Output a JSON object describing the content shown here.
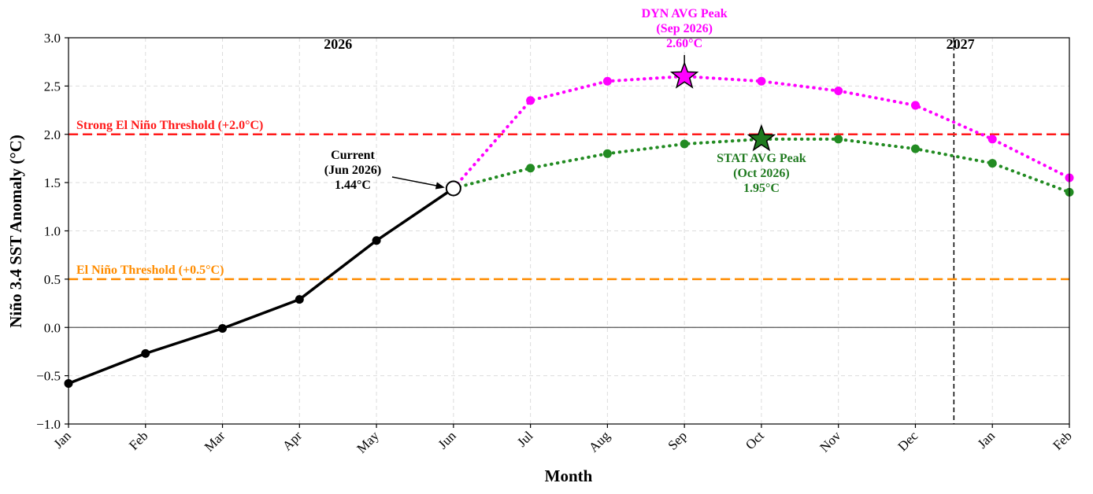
{
  "chart_data": {
    "type": "line",
    "xlabel": "Month",
    "ylabel": "Niño 3.4 SST Anomaly (°C)",
    "ylim": [
      -1.0,
      3.0
    ],
    "yticks": [
      -1.0,
      -0.5,
      0.0,
      0.5,
      1.0,
      1.5,
      2.0,
      2.5,
      3.0
    ],
    "ytick_labels": [
      "−1.0",
      "−0.5",
      "0.0",
      "0.5",
      "1.0",
      "1.5",
      "2.0",
      "2.5",
      "3.0"
    ],
    "categories": [
      "Jan",
      "Feb",
      "Mar",
      "Apr",
      "May",
      "Jun",
      "Jul",
      "Aug",
      "Sep",
      "Oct",
      "Nov",
      "Dec",
      "Jan",
      "Feb"
    ],
    "grid": true,
    "year_labels": [
      {
        "text": "2026",
        "at": 3.5
      },
      {
        "text": "2027",
        "at": 11.4
      }
    ],
    "year_divider_at": 11.5,
    "thresholds": [
      {
        "label": "Strong El Niño Threshold (+2.0°C)",
        "value": 2.0,
        "color": "#ff1a1a"
      },
      {
        "label": "El Niño Threshold (+0.5°C)",
        "value": 0.5,
        "color": "#ff8c00"
      }
    ],
    "series": [
      {
        "style": "observed",
        "color": "#000000",
        "x": [
          0,
          1,
          2,
          3,
          4,
          5
        ],
        "values": [
          -0.58,
          -0.27,
          -0.01,
          0.29,
          0.9,
          1.44
        ]
      },
      {
        "style": "dyn",
        "color": "#ff00ff",
        "x": [
          5,
          6,
          7,
          8,
          9,
          10,
          11,
          12,
          13
        ],
        "values": [
          1.44,
          2.35,
          2.55,
          2.6,
          2.55,
          2.45,
          2.3,
          1.95,
          1.55
        ]
      },
      {
        "style": "stat",
        "color": "#228b22",
        "x": [
          5,
          6,
          7,
          8,
          9,
          10,
          11,
          12,
          13
        ],
        "values": [
          1.44,
          1.65,
          1.8,
          1.9,
          1.95,
          1.95,
          1.85,
          1.7,
          1.4
        ]
      }
    ],
    "annotations": {
      "current": {
        "lines": [
          "Current",
          "(Jun 2026)",
          "1.44°C"
        ],
        "x": 5,
        "y": 1.44
      },
      "dyn_peak": {
        "lines": [
          "DYN AVG Peak",
          "(Sep 2026)",
          "2.60°C"
        ],
        "x": 8,
        "y": 2.6,
        "color": "#ff00ff"
      },
      "stat_peak": {
        "lines": [
          "STAT AVG Peak",
          "(Oct 2026)",
          "1.95°C"
        ],
        "x": 9,
        "y": 1.95,
        "color": "#1f7a1f"
      }
    }
  }
}
